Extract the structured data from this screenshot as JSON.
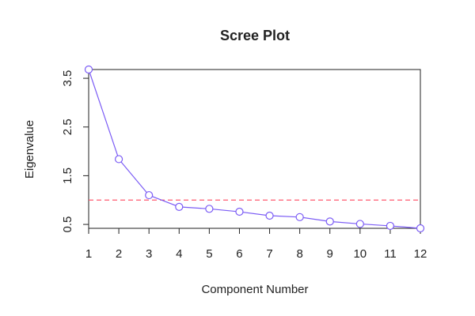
{
  "chart_data": {
    "type": "line",
    "title": "Scree Plot",
    "x_label": "Component Number",
    "y_label": "Eigenvalue",
    "x": [
      1,
      2,
      3,
      4,
      5,
      6,
      7,
      8,
      9,
      10,
      11,
      12
    ],
    "values": [
      3.68,
      1.84,
      1.1,
      0.86,
      0.82,
      0.76,
      0.68,
      0.65,
      0.56,
      0.51,
      0.47,
      0.42
    ],
    "color": "#7b5cf5",
    "xlim": [
      1,
      12
    ],
    "xticks": [
      1,
      2,
      3,
      4,
      5,
      6,
      7,
      8,
      9,
      10,
      11,
      12
    ],
    "ylim": [
      0.42,
      3.68
    ],
    "yticks": [
      0.5,
      1.5,
      2.5,
      3.5
    ],
    "reference_line": 1,
    "reference_color": "#ff5a6e"
  }
}
